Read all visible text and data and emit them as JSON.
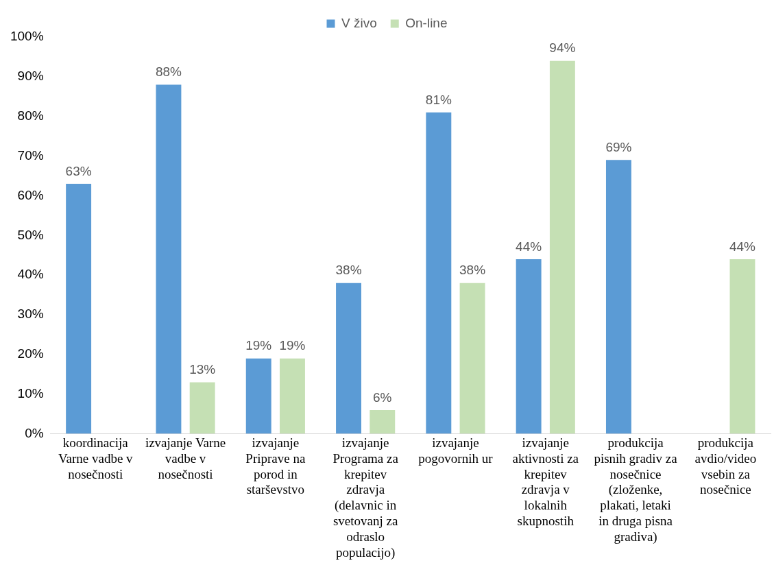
{
  "chart_data": {
    "type": "bar",
    "categories": [
      "koordinacija Varne vadbe v nosečnosti",
      "izvajanje Varne vadbe v nosečnosti",
      "izvajanje Priprave na porod in starševstvo",
      "izvajanje Programa za krepitev zdravja (delavnic in svetovanj za odraslo populacijo)",
      "izvajanje pogovornih ur",
      "izvajanje aktivnosti za krepitev zdravja v lokalnih skupnostih",
      "produkcija pisnih gradiv za nosečnice (zloženke, plakati, letaki in druga pisna gradiva)",
      "produkcija avdio/video vsebin za nosečnice"
    ],
    "series": [
      {
        "name": "V živo",
        "color": "#5b9bd5",
        "values": [
          63,
          88,
          19,
          38,
          81,
          44,
          69,
          null
        ],
        "value_labels": [
          "63%",
          "88%",
          "19%",
          "38%",
          "81%",
          "44%",
          "69%",
          null
        ]
      },
      {
        "name": "On-line",
        "color": "#c5e0b4",
        "values": [
          null,
          13,
          19,
          6,
          38,
          94,
          null,
          44
        ],
        "value_labels": [
          null,
          "13%",
          "19%",
          "6%",
          "38%",
          "94%",
          null,
          "44%"
        ]
      }
    ],
    "ylim": [
      0,
      100
    ],
    "yticks": [
      {
        "value": 0,
        "label": "0%"
      },
      {
        "value": 10,
        "label": "10%"
      },
      {
        "value": 20,
        "label": "20%"
      },
      {
        "value": 30,
        "label": "30%"
      },
      {
        "value": 40,
        "label": "40%"
      },
      {
        "value": 50,
        "label": "50%"
      },
      {
        "value": 60,
        "label": "60%"
      },
      {
        "value": 70,
        "label": "70%"
      },
      {
        "value": 80,
        "label": "80%"
      },
      {
        "value": 90,
        "label": "90%"
      },
      {
        "value": 100,
        "label": "100%"
      }
    ],
    "grid": false,
    "legend": "top"
  }
}
